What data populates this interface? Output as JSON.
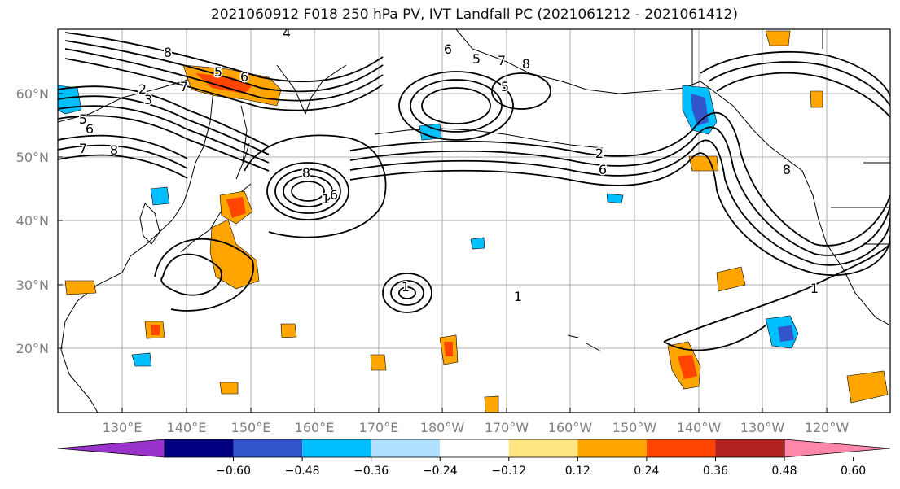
{
  "title": "2021060912 F018 250 hPa PV, IVT Landfall PC (2021061212 - 2021061412)",
  "map": {
    "lat_labels": [
      "60°N",
      "50°N",
      "40°N",
      "30°N",
      "20°N"
    ],
    "lon_labels": [
      "130°E",
      "140°E",
      "150°E",
      "160°E",
      "170°E",
      "180°W",
      "170°W",
      "160°W",
      "150°W",
      "140°W",
      "130°W",
      "120°W"
    ],
    "contour_labels": [
      "4",
      "6",
      "8",
      "5",
      "7",
      "2",
      "3",
      "5",
      "6",
      "7",
      "8",
      "5",
      "6",
      "7",
      "8",
      "1",
      "8",
      "6",
      "5",
      "6",
      "2",
      "8",
      "1",
      "1",
      "1"
    ]
  },
  "colorbar": {
    "colors": [
      "#9933cc",
      "#000080",
      "#3355cc",
      "#00bfff",
      "#b0e0ff",
      "#ffffff",
      "#ffe680",
      "#ffa500",
      "#ff4500",
      "#b22222",
      "#ff88aa"
    ],
    "tick_labels": [
      "−0.60",
      "−0.48",
      "−0.36",
      "−0.24",
      "−0.12",
      "0.12",
      "0.24",
      "0.36",
      "0.48",
      "0.60"
    ]
  }
}
